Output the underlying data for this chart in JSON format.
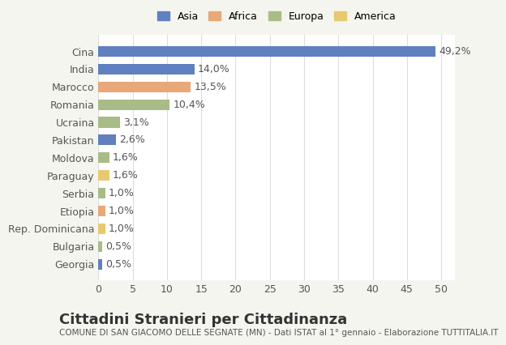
{
  "categories": [
    "Cina",
    "India",
    "Marocco",
    "Romania",
    "Ucraina",
    "Pakistan",
    "Moldova",
    "Paraguay",
    "Serbia",
    "Etiopia",
    "Rep. Dominicana",
    "Bulgaria",
    "Georgia"
  ],
  "values": [
    49.2,
    14.0,
    13.5,
    10.4,
    3.1,
    2.6,
    1.6,
    1.6,
    1.0,
    1.0,
    1.0,
    0.5,
    0.5
  ],
  "labels": [
    "49,2%",
    "14,0%",
    "13,5%",
    "10,4%",
    "3,1%",
    "2,6%",
    "1,6%",
    "1,6%",
    "1,0%",
    "1,0%",
    "1,0%",
    "0,5%",
    "0,5%"
  ],
  "colors": [
    "#6080c0",
    "#6080c0",
    "#e8a878",
    "#a8bc88",
    "#a8bc88",
    "#6080c0",
    "#a8bc88",
    "#e8c870",
    "#a8bc88",
    "#e8a878",
    "#e8c870",
    "#a8bc88",
    "#6080c0"
  ],
  "legend_labels": [
    "Asia",
    "Africa",
    "Europa",
    "America"
  ],
  "legend_colors": [
    "#6080c0",
    "#e8a878",
    "#a8bc88",
    "#e8c870"
  ],
  "title": "Cittadini Stranieri per Cittadinanza",
  "subtitle": "COMUNE DI SAN GIACOMO DELLE SEGNATE (MN) - Dati ISTAT al 1° gennaio - Elaborazione TUTTITALIA.IT",
  "xlim": [
    0,
    52
  ],
  "xticks": [
    0,
    5,
    10,
    15,
    20,
    25,
    30,
    35,
    40,
    45,
    50
  ],
  "background_color": "#f5f5f0",
  "bar_background": "#ffffff",
  "grid_color": "#dddddd",
  "title_fontsize": 13,
  "subtitle_fontsize": 7.5,
  "label_fontsize": 9,
  "tick_fontsize": 9
}
